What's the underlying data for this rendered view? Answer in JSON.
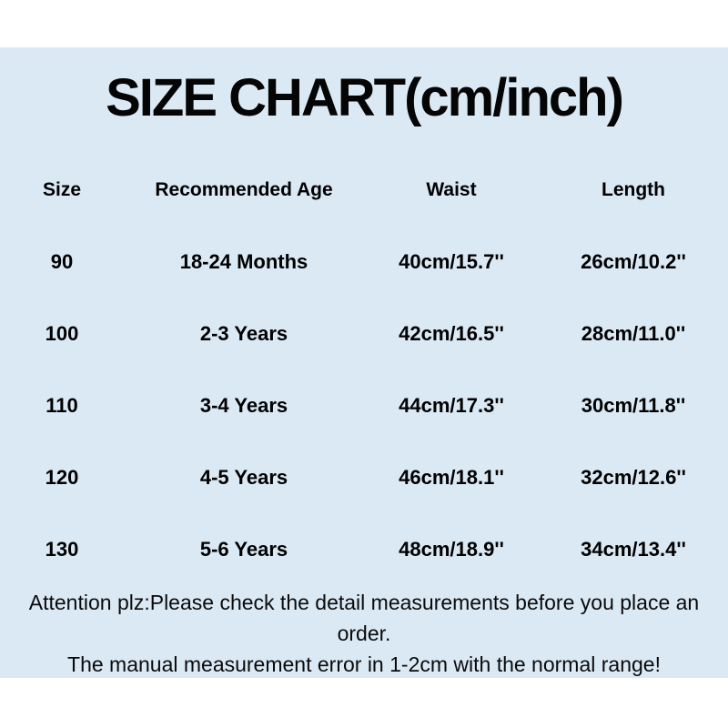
{
  "title": "SIZE CHART(cm/inch)",
  "chart_data": {
    "type": "table",
    "title": "SIZE CHART(cm/inch)",
    "headers": [
      "Size",
      "Recommended Age",
      "Waist",
      "Length"
    ],
    "rows": [
      [
        "90",
        "18-24 Months",
        "40cm/15.7''",
        "26cm/10.2''"
      ],
      [
        "100",
        "2-3 Years",
        "42cm/16.5''",
        "28cm/11.0''"
      ],
      [
        "110",
        "3-4 Years",
        "44cm/17.3''",
        "30cm/11.8''"
      ],
      [
        "120",
        "4-5 Years",
        "46cm/18.1''",
        "32cm/12.6''"
      ],
      [
        "130",
        "5-6 Years",
        "48cm/18.9''",
        "34cm/13.4''"
      ]
    ],
    "units": {
      "waist_cm": [
        40,
        42,
        44,
        46,
        48
      ],
      "waist_inch": [
        15.7,
        16.5,
        17.3,
        18.1,
        18.9
      ],
      "length_cm": [
        26,
        28,
        30,
        32,
        34
      ],
      "length_inch": [
        10.2,
        11.0,
        11.8,
        12.6,
        13.4
      ]
    }
  },
  "footer": {
    "lines": [
      "Attention plz:Please check the detail measurements before you place an",
      "order.",
      "The manual measurement error in 1-2cm with the normal range!"
    ]
  },
  "colors": {
    "panel_background": "#dbe9f5",
    "page_background": "#ffffff",
    "text": "#000000"
  }
}
